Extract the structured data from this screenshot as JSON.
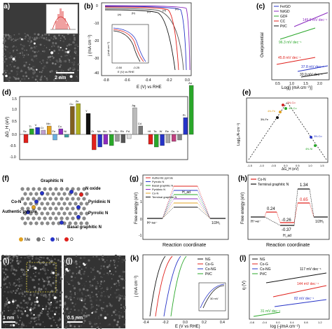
{
  "panels": {
    "a": {
      "label": "(a)",
      "scale": "2 nm"
    },
    "b": {
      "label": "(b)",
      "ylabel": "j (mA cm⁻²)",
      "xlabel": "E (V) vs RHE",
      "ticks_x": [
        "-0.8",
        "-0.6",
        "-0.4",
        "-0.2",
        "0.0"
      ],
      "ticks_y": [
        "0",
        "-10",
        "-20",
        "-30",
        "-40"
      ],
      "inset_xlabel": "E (V) vs RHE",
      "inset_ylabel": "j (mA cm⁻²)",
      "inset_ticks": [
        "-0.50",
        "-0.25"
      ],
      "curve_tags": [
        "(a)",
        "(b)",
        "(c)",
        "(d)",
        "(e)"
      ]
    },
    "c": {
      "label": "(c)",
      "ylabel": "Overpotential",
      "xlabel": "Log[j (mA cm⁻²)]",
      "legend": [
        "Fe/GD",
        "Ni/GD",
        "GDF",
        "CC",
        "Pt/C"
      ],
      "slopes": [
        "149.9 mV dec⁻¹",
        "96.3 mV dec⁻¹",
        "45.8 mV dec⁻¹",
        "37.8 mV dec⁻¹",
        "33.9 mV dec⁻¹"
      ],
      "ticks_x": [
        "0.5",
        "1.0",
        "1.5",
        "2.0"
      ]
    },
    "d": {
      "label": "(d)",
      "ylabel": "ΔG_H (eV)",
      "ticks_y": [
        "1.5",
        "1.0",
        "0.5",
        "0.0",
        "-0.5",
        "-1.0"
      ],
      "elements": [
        "Sc",
        "Ti",
        "V",
        "Cr",
        "Mn",
        "Fe",
        "Co",
        "Ni",
        "Cu",
        "Zn",
        "Y",
        "Zr",
        "Nb",
        "Mo",
        "Tc",
        "Ru",
        "Rh",
        "Pd",
        "Ag",
        "Cd",
        "Hf",
        "Ta",
        "W",
        "Re",
        "Os",
        "Ir",
        "Pt",
        "Au"
      ]
    },
    "e": {
      "label": "(e)",
      "ylabel": "Log(j₀/A·cm⁻²)",
      "xlabel": "ΔG_H (eV)",
      "points": [
        "2N-Co",
        "4N-Co",
        "3N-Fe",
        "4N-Fe",
        "3N-Co",
        "4N-Ni"
      ],
      "ticks_x": [
        "-1.5",
        "-1.0",
        "-0.5",
        "0.0",
        "0.5",
        "1.0",
        "1.5"
      ]
    },
    "f": {
      "label": "(f)",
      "callouts": [
        "Graphitic N",
        "N oxide",
        "Co-N",
        "Pyridinic N",
        "Authentic pyrrole",
        "Pyrrolic N",
        "Basal graphitic N"
      ],
      "legend": [
        "Me",
        "C",
        "N",
        "O"
      ]
    },
    "g": {
      "label": "(g)",
      "ylabel": "Free energy (eV)",
      "xlabel": "Reaction coordinate",
      "legend": [
        "Authentic pyrrole",
        "Pyrrolic N",
        "Basal graphitic N",
        "Pyridinic N",
        "Co-N",
        "Terminal graphitic N"
      ],
      "ann": [
        "H_ad",
        "H⁺+e⁻",
        "1/2H₂"
      ],
      "ticks_y": [
        "2",
        "1",
        "0",
        "-1"
      ]
    },
    "h": {
      "label": "(h)",
      "ylabel": "Free energy (eV)",
      "xlabel": "Reaction coordinate",
      "legend": [
        "Co-N",
        "Terminal graphitic N"
      ],
      "values": [
        "1.34",
        "0.65",
        "0.24",
        "-0.26",
        "-0.37"
      ],
      "ann": [
        "H⁺+e⁻",
        "H_ad",
        "1/2H₂"
      ]
    },
    "i": {
      "label": "(i)",
      "scale": "1 nm"
    },
    "j": {
      "label": "(j)",
      "scale": "0.5 nm"
    },
    "k": {
      "label": "(k)",
      "ylabel": "j (mA cm⁻²)",
      "xlabel": "E (V vs RHE)",
      "legend": [
        "NG",
        "Co-G",
        "Co-NG",
        "Pt/C"
      ],
      "inset_note": "30 mV",
      "ticks_x": [
        "-0.4",
        "-0.2",
        "0.0",
        "0.2",
        "0.4"
      ]
    },
    "l": {
      "label": "(l)",
      "ylabel": "η (V)",
      "xlabel": "log (-j/mA cm⁻²)",
      "legend": [
        "NG",
        "Co-G",
        "Co-NG",
        "Pt/C"
      ],
      "slopes": [
        "117 mV dec⁻¹",
        "144 mV dec⁻¹",
        "82 mV dec⁻¹",
        "31 mV dec⁻¹"
      ],
      "ticks_x": [
        "-0.8",
        "-0.4",
        "0.0",
        "0.4",
        "0.8",
        "1.2"
      ]
    }
  },
  "colors": {
    "red": "#e0201b",
    "blue": "#2633c7",
    "green": "#2aa72a",
    "black": "#111111",
    "purple": "#8b2bbf"
  }
}
